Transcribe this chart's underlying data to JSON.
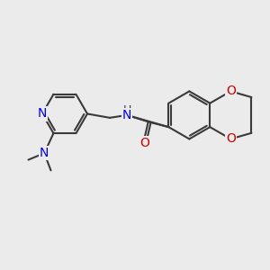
{
  "bg_color": "#ebebeb",
  "bond_color": "#3a3a3a",
  "N_color": "#0000ee",
  "O_color": "#cc0000",
  "bond_width": 1.5,
  "font_size": 10,
  "xlim": [
    0,
    10
  ],
  "ylim": [
    0,
    10
  ]
}
